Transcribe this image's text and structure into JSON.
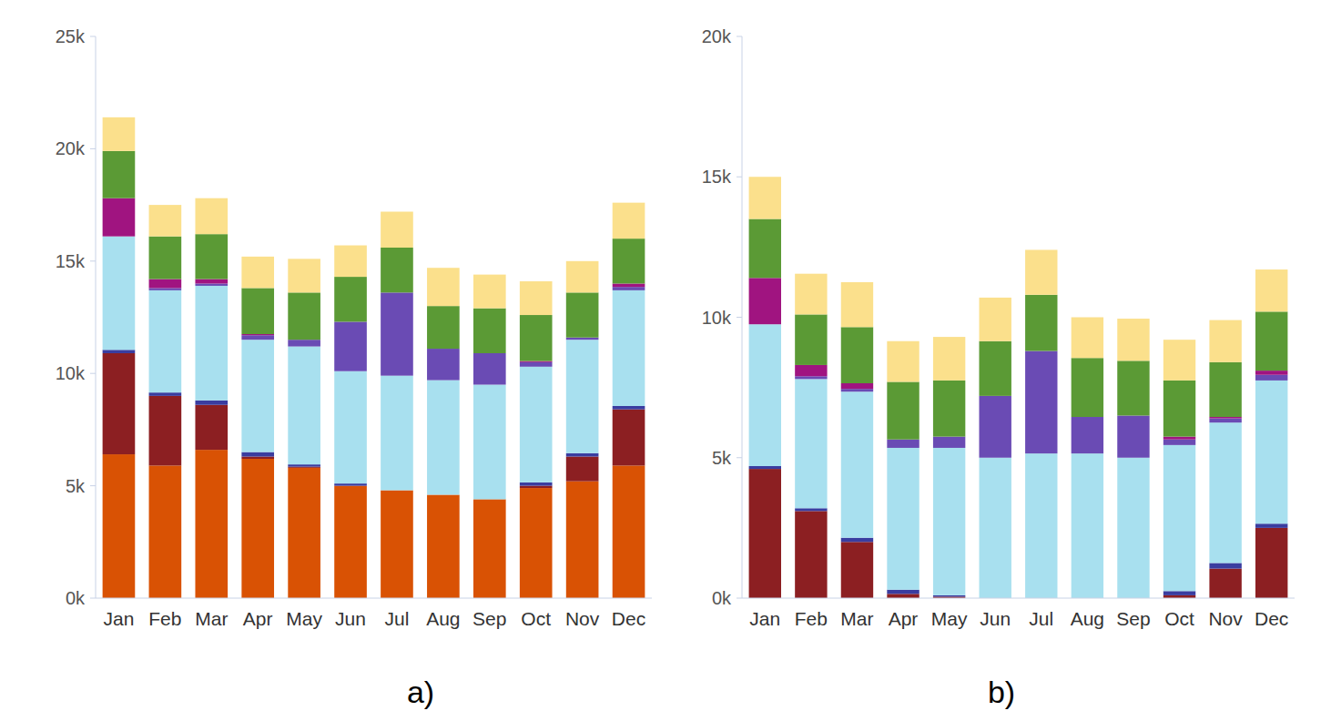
{
  "chart_data": [
    {
      "type": "bar",
      "title": "a)",
      "stacked": true,
      "grid": false,
      "categories": [
        "Jan",
        "Feb",
        "Mar",
        "Apr",
        "May",
        "Jun",
        "Jul",
        "Aug",
        "Sep",
        "Oct",
        "Nov",
        "Dec"
      ],
      "ylim": [
        0,
        25000
      ],
      "yticks": [
        {
          "value": 0,
          "label": "0k"
        },
        {
          "value": 5000,
          "label": "5k"
        },
        {
          "value": 10000,
          "label": "10k"
        },
        {
          "value": 15000,
          "label": "15k"
        },
        {
          "value": 20000,
          "label": "20k"
        },
        {
          "value": 25000,
          "label": "25k"
        }
      ],
      "series": [
        {
          "color": "#d95204",
          "values": [
            6400,
            5900,
            6600,
            6200,
            5800,
            5000,
            4800,
            4600,
            4400,
            4900,
            5200,
            5900
          ]
        },
        {
          "color": "#8c1f22",
          "values": [
            4500,
            3100,
            2000,
            100,
            50,
            0,
            0,
            0,
            0,
            100,
            1100,
            2500
          ]
        },
        {
          "color": "#3a3da0",
          "values": [
            150,
            150,
            200,
            200,
            100,
            100,
            0,
            0,
            0,
            150,
            150,
            150
          ]
        },
        {
          "color": "#a8e0ef",
          "values": [
            5050,
            4550,
            5100,
            5000,
            5250,
            5000,
            5100,
            5100,
            5100,
            5150,
            5050,
            5150
          ]
        },
        {
          "color": "#6a4bb4",
          "values": [
            0,
            100,
            100,
            200,
            300,
            2200,
            3700,
            1400,
            1400,
            200,
            100,
            150
          ]
        },
        {
          "color": "#a01480",
          "values": [
            1700,
            400,
            200,
            50,
            0,
            0,
            0,
            0,
            0,
            50,
            0,
            150
          ]
        },
        {
          "color": "#5b9a35",
          "values": [
            2100,
            1900,
            2000,
            2050,
            2100,
            2000,
            2000,
            1900,
            2000,
            2050,
            2000,
            2000
          ]
        },
        {
          "color": "#fbe08c",
          "values": [
            1500,
            1400,
            1600,
            1400,
            1500,
            1400,
            1600,
            1700,
            1500,
            1500,
            1400,
            1600
          ]
        }
      ]
    },
    {
      "type": "bar",
      "title": "b)",
      "stacked": true,
      "grid": false,
      "categories": [
        "Jan",
        "Feb",
        "Mar",
        "Apr",
        "May",
        "Jun",
        "Jul",
        "Aug",
        "Sep",
        "Oct",
        "Nov",
        "Dec"
      ],
      "ylim": [
        0,
        20000
      ],
      "yticks": [
        {
          "value": 0,
          "label": "0k"
        },
        {
          "value": 5000,
          "label": "5k"
        },
        {
          "value": 10000,
          "label": "10k"
        },
        {
          "value": 15000,
          "label": "15k"
        },
        {
          "value": 20000,
          "label": "20k"
        }
      ],
      "series": [
        {
          "color": "#8c1f22",
          "values": [
            4600,
            3100,
            2000,
            150,
            50,
            0,
            0,
            0,
            0,
            100,
            1050,
            2500
          ]
        },
        {
          "color": "#3a3da0",
          "values": [
            100,
            100,
            150,
            150,
            50,
            0,
            0,
            0,
            0,
            150,
            200,
            150
          ]
        },
        {
          "color": "#a8e0ef",
          "values": [
            5050,
            4600,
            5200,
            5050,
            5250,
            5000,
            5150,
            5150,
            5000,
            5200,
            5000,
            5100
          ]
        },
        {
          "color": "#6a4bb4",
          "values": [
            0,
            100,
            100,
            300,
            400,
            2200,
            3650,
            1300,
            1500,
            200,
            150,
            200
          ]
        },
        {
          "color": "#a01480",
          "values": [
            1650,
            400,
            200,
            0,
            0,
            0,
            0,
            0,
            0,
            100,
            50,
            150
          ]
        },
        {
          "color": "#5b9a35",
          "values": [
            2100,
            1800,
            2000,
            2050,
            2000,
            1950,
            2000,
            2100,
            1950,
            2000,
            1950,
            2100
          ]
        },
        {
          "color": "#fbe08c",
          "values": [
            1500,
            1450,
            1600,
            1450,
            1550,
            1550,
            1600,
            1450,
            1500,
            1450,
            1500,
            1500
          ]
        }
      ]
    }
  ]
}
